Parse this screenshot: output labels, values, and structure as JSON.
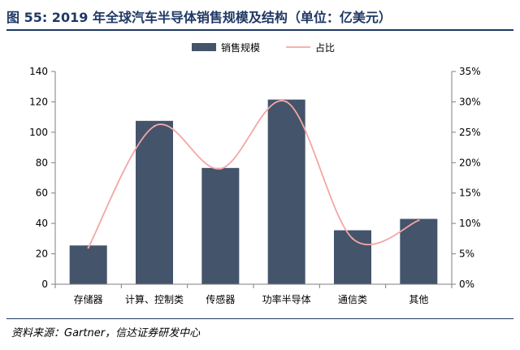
{
  "figure": {
    "title": "图 55:  2019 年全球汽车半导体销售规模及结构（单位：亿美元）",
    "source": "资料来源：Gartner，信达证券研发中心"
  },
  "chart_data": {
    "type": "bar",
    "categories": [
      "存储器",
      "计算、控制类",
      "传感器",
      "功率半导体",
      "通信类",
      "其他"
    ],
    "series": [
      {
        "name": "销售规模",
        "type": "bar",
        "axis": "left",
        "values": [
          25.5,
          107.5,
          76.5,
          121.5,
          35.5,
          43
        ]
      },
      {
        "name": "占比",
        "type": "line",
        "axis": "right",
        "smooth": true,
        "values": [
          0.06,
          0.26,
          0.19,
          0.3,
          0.075,
          0.105
        ]
      }
    ],
    "y_left": {
      "min": 0,
      "max": 140,
      "step": 20,
      "ticks": [
        "0",
        "20",
        "40",
        "60",
        "80",
        "100",
        "120",
        "140"
      ]
    },
    "y_right": {
      "min": 0,
      "max": 0.35,
      "step": 0.05,
      "ticks": [
        "0%",
        "5%",
        "10%",
        "15%",
        "20%",
        "25%",
        "30%",
        "35%"
      ]
    },
    "legend": {
      "position": "top-center",
      "items": [
        "销售规模",
        "占比"
      ]
    },
    "grid": false,
    "colors": {
      "bar": "#44546a",
      "line": "#f4a6a6",
      "axis": "#7f7f7f",
      "title": "#1f3864"
    }
  }
}
